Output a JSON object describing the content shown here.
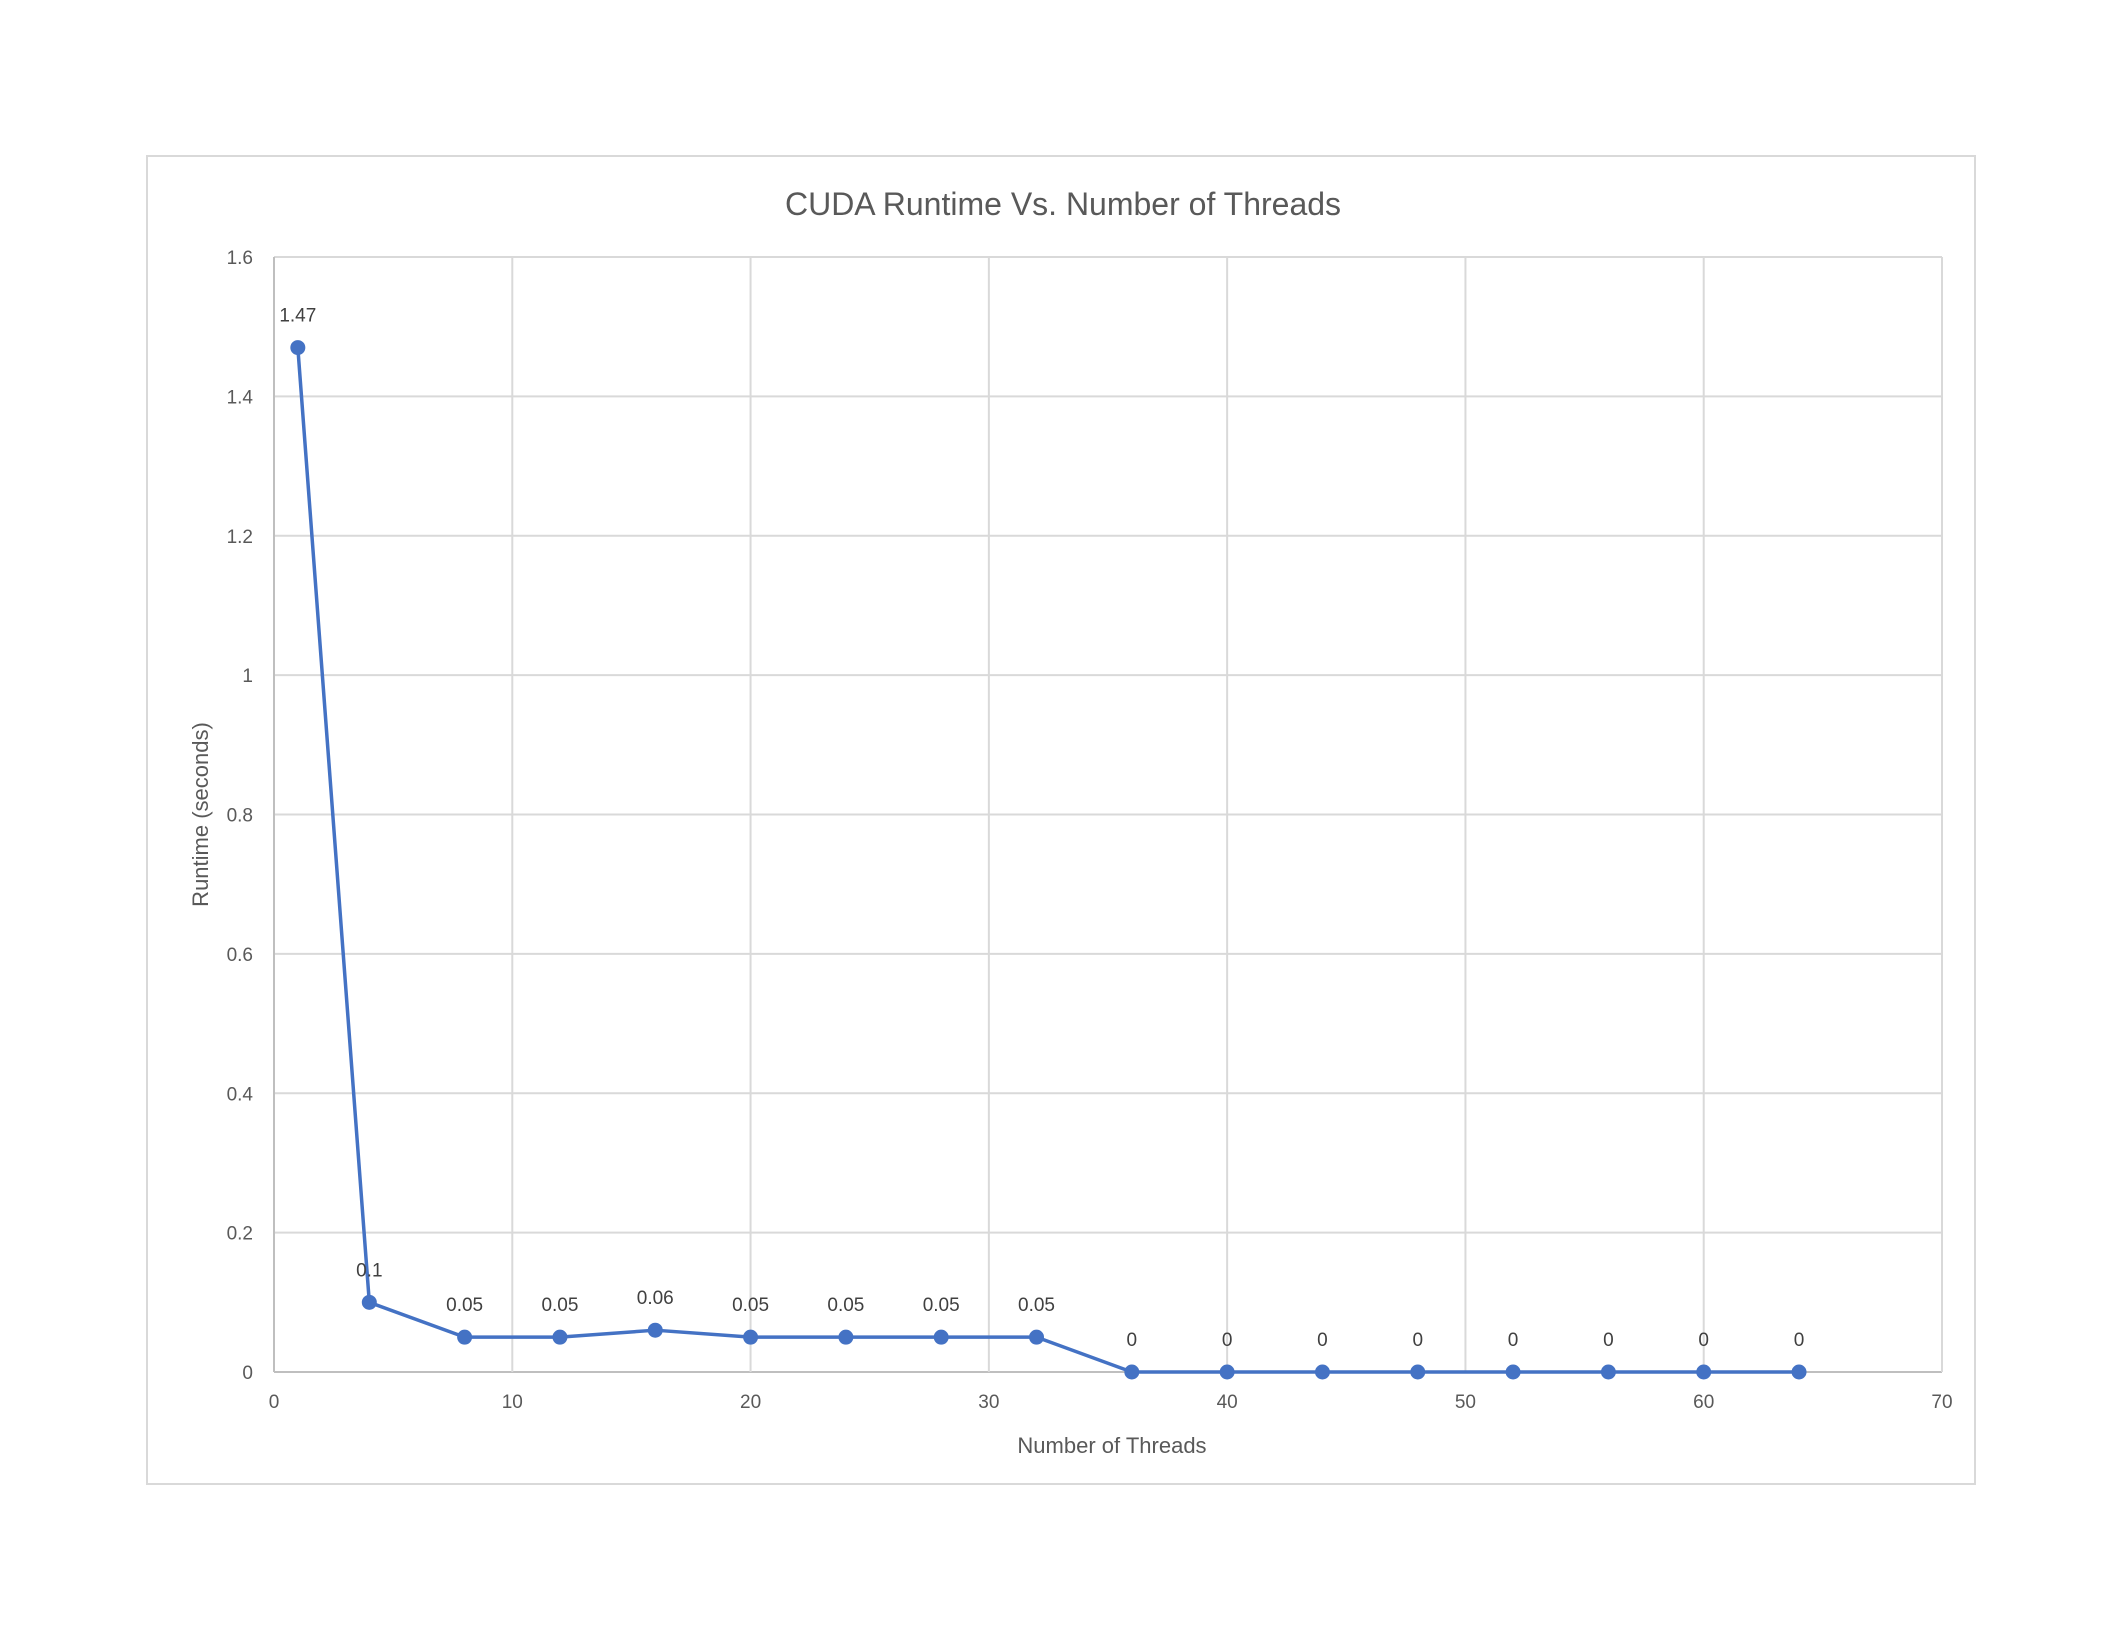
{
  "chart_data": {
    "type": "scatter",
    "title": "CUDA Runtime Vs. Number of Threads",
    "xlabel": "Number of Threads",
    "ylabel": "Runtime (seconds)",
    "xlim": [
      0,
      70
    ],
    "ylim": [
      0,
      1.6
    ],
    "xticks": [
      "0",
      "10",
      "20",
      "30",
      "40",
      "50",
      "60",
      "70"
    ],
    "yticks": [
      "0",
      "0.2",
      "0.4",
      "0.6",
      "0.8",
      "1",
      "1.2",
      "1.4",
      "1.6"
    ],
    "grid": true,
    "legend": "none",
    "series_color": "#4472C4",
    "x": [
      1,
      4,
      8,
      12,
      16,
      20,
      24,
      28,
      32,
      36,
      40,
      44,
      48,
      52,
      56,
      60,
      64
    ],
    "y": [
      1.47,
      0.1,
      0.05,
      0.05,
      0.06,
      0.05,
      0.05,
      0.05,
      0.05,
      0,
      0,
      0,
      0,
      0,
      0,
      0,
      0
    ],
    "data_labels": [
      "1.47",
      "0.1",
      "0.05",
      "0.05",
      "0.06",
      "0.05",
      "0.05",
      "0.05",
      "0.05",
      "0",
      "0",
      "0",
      "0",
      "0",
      "0",
      "0",
      "0"
    ]
  }
}
